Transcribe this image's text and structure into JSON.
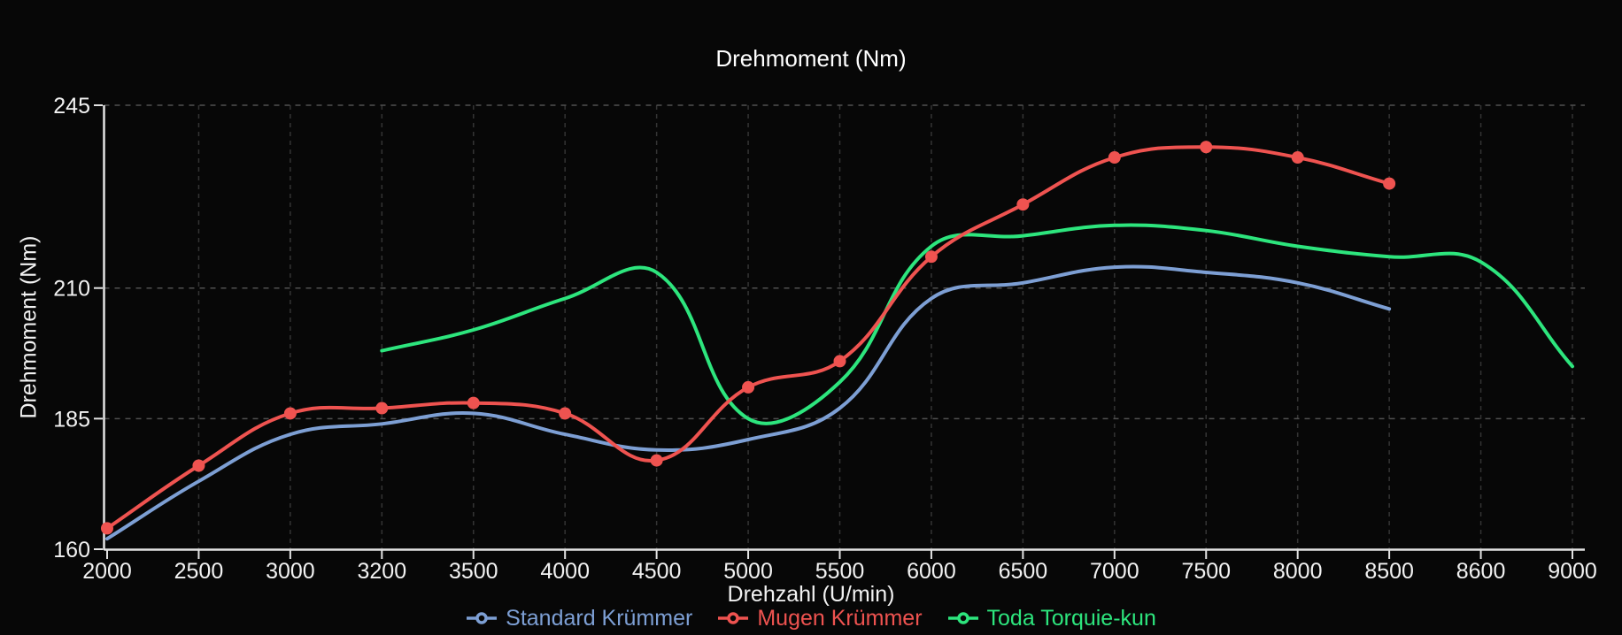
{
  "chart_data": {
    "type": "line",
    "title": "Drehmoment (Nm)",
    "xlabel": "Drehzahl (U/min)",
    "ylabel": "Drehmoment (Nm)",
    "categories": [
      "2000",
      "2500",
      "3000",
      "3200",
      "3500",
      "4000",
      "4500",
      "5000",
      "5500",
      "6000",
      "6500",
      "7000",
      "7500",
      "8000",
      "8500",
      "8600",
      "9000"
    ],
    "ylim": [
      160,
      245
    ],
    "y_ticks": [
      160,
      185,
      210,
      245
    ],
    "grid": true,
    "legend_position": "bottom",
    "line_tension": 0.4,
    "series": [
      {
        "name": "Standard Krümmer",
        "color": "#7d9fd4",
        "point_radius": 0,
        "values": [
          162,
          173,
          182,
          184,
          186,
          182,
          179,
          181,
          187,
          208,
          211,
          214,
          213,
          211,
          206,
          null,
          null
        ]
      },
      {
        "name": "Mugen Krümmer",
        "color": "#ef5350",
        "point_radius": 7,
        "values": [
          164,
          176,
          186,
          187,
          188,
          186,
          177,
          191,
          196,
          216,
          226,
          235,
          237,
          235,
          230,
          null,
          null
        ]
      },
      {
        "name": "Toda Torquie-kun",
        "color": "#2de57d",
        "point_radius": 0,
        "values": [
          null,
          null,
          null,
          198,
          202,
          208,
          213,
          185,
          192,
          218,
          220,
          222,
          221,
          218,
          216,
          215,
          195
        ]
      }
    ]
  },
  "colors": {
    "background": "#070707",
    "axis_line": "#e3e3e3",
    "tick_label": "#f2f2f2",
    "grid_horizontal": "#505050",
    "grid_vertical": "#343434",
    "title": "#ffffff"
  }
}
